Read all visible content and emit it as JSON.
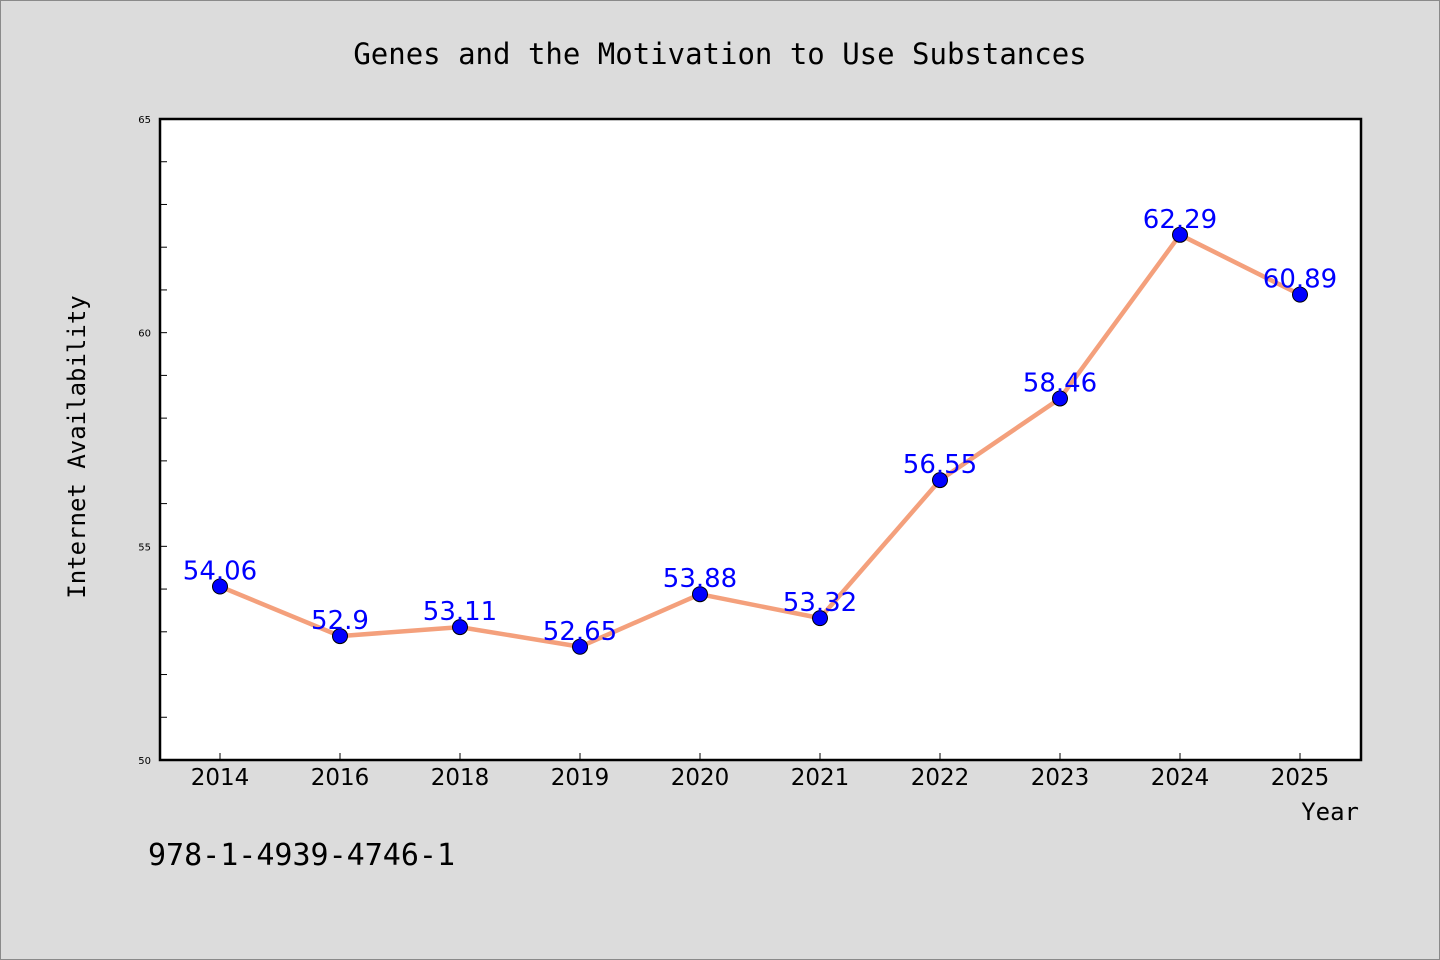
{
  "chart_data": {
    "type": "line",
    "title": "Genes and the Motivation to Use Substances",
    "xlabel": "Year",
    "ylabel": "Internet Availability",
    "categories": [
      "2014",
      "2016",
      "2018",
      "2019",
      "2020",
      "2021",
      "2022",
      "2023",
      "2024",
      "2025"
    ],
    "series": [
      {
        "values": [
          54.06,
          52.9,
          53.11,
          52.65,
          53.88,
          53.32,
          56.55,
          58.46,
          62.29,
          60.89
        ],
        "labels": [
          "54.06",
          "52.9",
          "53.11",
          "52.65",
          "53.88",
          "53.32",
          "56.55",
          "58.46",
          "62.29",
          "60.89"
        ],
        "line_color": "#f4a07c",
        "marker_color": "#0000ff",
        "label_color": "#0000ff"
      }
    ],
    "ylim": [
      50,
      65
    ],
    "yticks": [
      "50",
      "55",
      "60",
      "65"
    ],
    "grid": false,
    "legend": "none"
  },
  "footnote": "978-1-4939-4746-1",
  "colors": {
    "background": "#dcdcdc",
    "plot_background": "#ffffff",
    "axis": "#000000"
  }
}
